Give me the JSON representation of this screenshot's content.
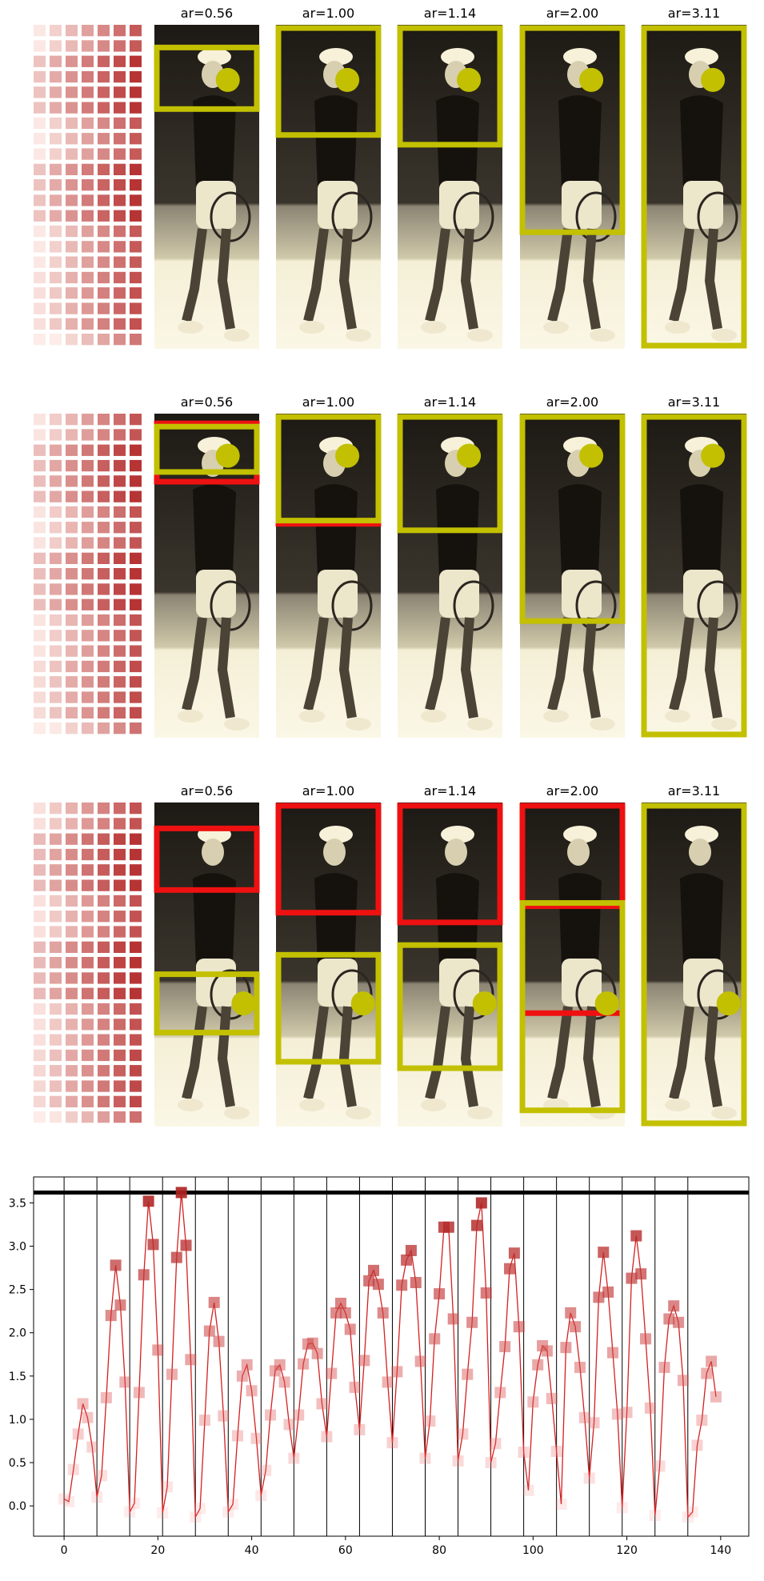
{
  "panels": {
    "titles": [
      "ar=0.56",
      "ar=1.00",
      "ar=1.14",
      "ar=2.00",
      "ar=3.11"
    ],
    "box_colors": {
      "yellow": "#c2c000",
      "red": "#ee1111"
    },
    "photo_tint": [
      "#1d1914",
      "#f4efd6"
    ]
  },
  "chart_data": {
    "type": "line",
    "x": [
      0,
      1,
      2,
      3,
      4,
      5,
      6,
      7,
      8,
      9,
      10,
      11,
      12,
      13,
      14,
      15,
      16,
      17,
      18,
      19,
      20,
      21,
      22,
      23,
      24,
      25,
      26,
      27,
      28,
      29,
      30,
      31,
      32,
      33,
      34,
      35,
      36,
      37,
      38,
      39,
      40,
      41,
      42,
      43,
      44,
      45,
      46,
      47,
      48,
      49,
      50,
      51,
      52,
      53,
      54,
      55,
      56,
      57,
      58,
      59,
      60,
      61,
      62,
      63,
      64,
      65,
      66,
      67,
      68,
      69,
      70,
      71,
      72,
      73,
      74,
      75,
      76,
      77,
      78,
      79,
      80,
      81,
      82,
      83,
      84,
      85,
      86,
      87,
      88,
      89,
      90,
      91,
      92,
      93,
      94,
      95,
      96,
      97,
      98,
      99,
      100,
      101,
      102,
      103,
      104,
      105,
      106,
      107,
      108,
      109,
      110,
      111,
      112,
      113,
      114,
      115,
      116,
      117,
      118,
      119,
      120,
      121,
      122,
      123,
      124,
      125,
      126,
      127,
      128,
      129,
      130,
      131,
      132,
      133,
      134,
      135,
      136,
      137,
      138,
      139
    ],
    "y": [
      0.08,
      0.05,
      0.42,
      0.83,
      1.18,
      1.02,
      0.68,
      0.1,
      0.35,
      1.25,
      2.2,
      2.78,
      2.32,
      1.43,
      -0.07,
      0.03,
      1.31,
      2.67,
      3.52,
      3.02,
      1.8,
      -0.08,
      0.22,
      1.52,
      2.87,
      3.62,
      3.01,
      1.69,
      -0.13,
      -0.03,
      0.99,
      2.02,
      2.35,
      1.9,
      1.04,
      -0.07,
      0.02,
      0.81,
      1.5,
      1.63,
      1.33,
      0.78,
      0.12,
      0.41,
      1.05,
      1.56,
      1.63,
      1.43,
      0.94,
      0.55,
      1.05,
      1.64,
      1.87,
      1.88,
      1.76,
      1.18,
      0.8,
      1.53,
      2.23,
      2.34,
      2.23,
      2.04,
      1.37,
      0.88,
      1.68,
      2.6,
      2.72,
      2.56,
      2.23,
      1.43,
      0.73,
      1.55,
      2.55,
      2.84,
      2.95,
      2.58,
      1.67,
      0.55,
      0.98,
      1.93,
      2.45,
      3.22,
      3.22,
      2.16,
      0.52,
      0.83,
      1.52,
      2.12,
      3.24,
      3.5,
      2.46,
      0.5,
      0.72,
      1.31,
      1.84,
      2.74,
      2.92,
      2.07,
      0.62,
      0.18,
      1.2,
      1.63,
      1.85,
      1.79,
      1.24,
      0.63,
      0.02,
      1.83,
      2.23,
      2.07,
      1.6,
      1.02,
      0.32,
      0.96,
      2.41,
      2.93,
      2.47,
      1.77,
      1.06,
      -0.02,
      1.08,
      2.63,
      3.12,
      2.68,
      1.93,
      1.13,
      -0.11,
      0.46,
      1.6,
      2.16,
      2.31,
      2.12,
      1.45,
      -0.13,
      -0.07,
      0.7,
      0.99,
      1.53,
      1.67,
      1.26
    ],
    "xticks": [
      0,
      20,
      40,
      60,
      80,
      100,
      120,
      140
    ],
    "yticks": [
      0.0,
      0.5,
      1.0,
      1.5,
      2.0,
      2.5,
      3.0,
      3.5
    ],
    "xlim": [
      -6.5,
      146
    ],
    "ylim": [
      -0.35,
      3.8
    ],
    "hline": 3.62,
    "vlines": [
      0,
      7,
      14,
      21,
      28,
      35,
      42,
      49,
      56,
      63,
      70,
      77,
      84,
      91,
      98,
      105,
      112,
      119,
      126,
      133
    ],
    "line_color": "#d42020",
    "marker": "square",
    "grid": false,
    "title": "",
    "xlabel": "",
    "ylabel": ""
  }
}
